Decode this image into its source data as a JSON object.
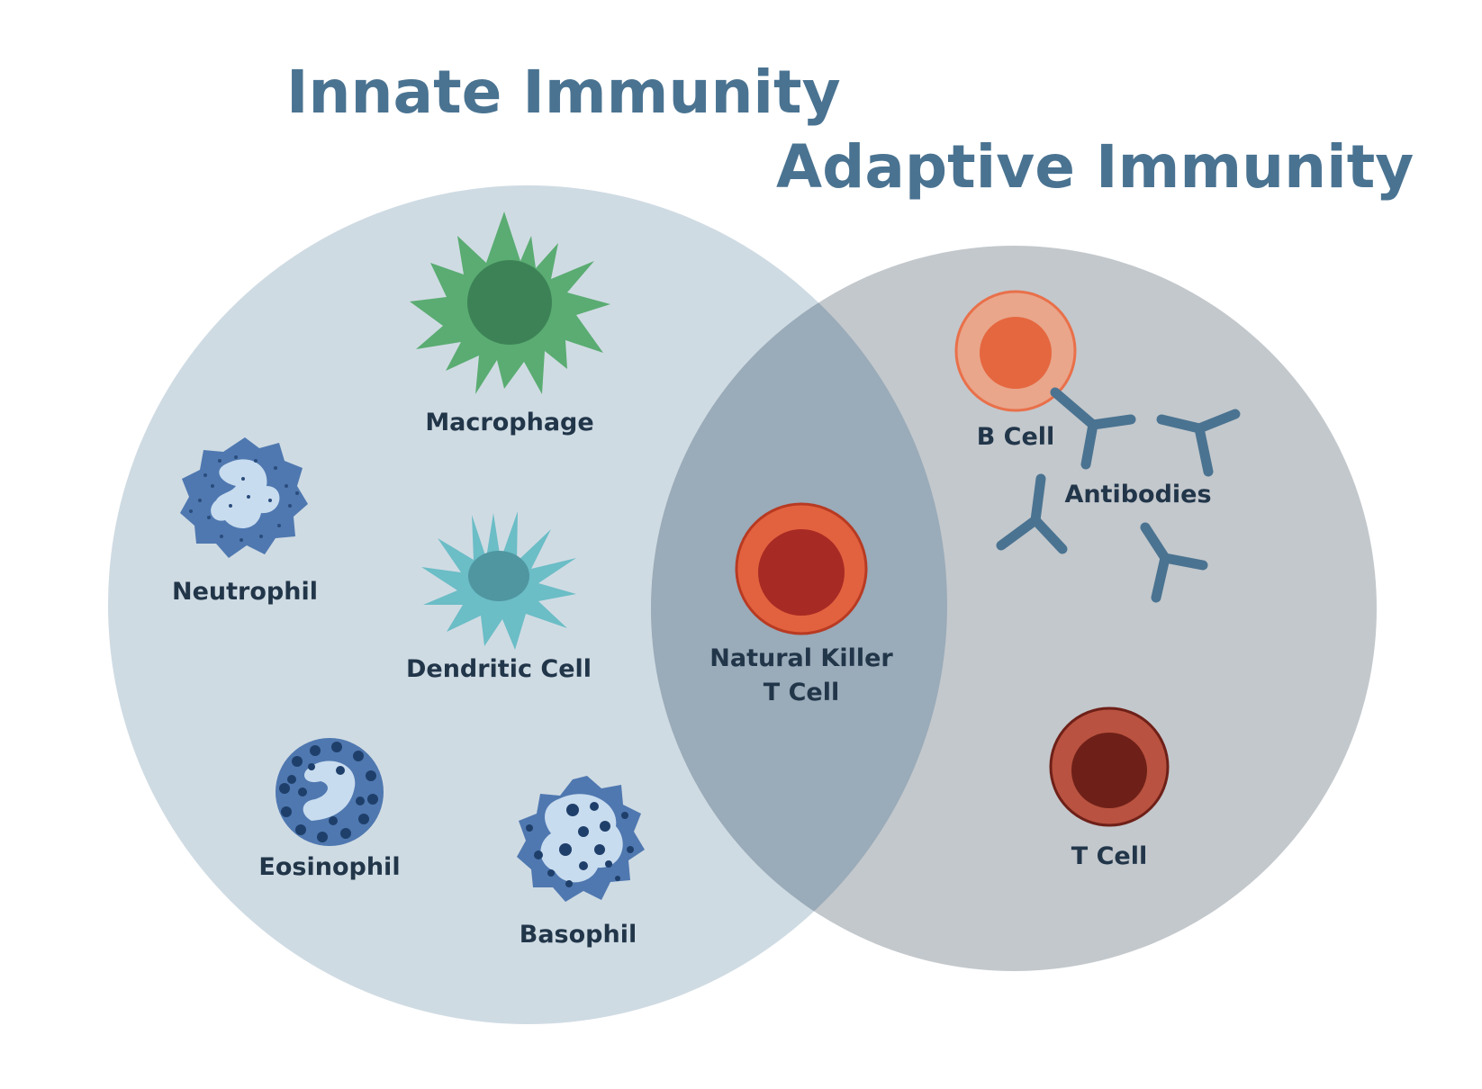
{
  "titles": {
    "innate": "Innate Immunity",
    "adaptive": "Adaptive Immunity"
  },
  "labels": {
    "macrophage": "Macrophage",
    "neutrophil": "Neutrophil",
    "dendritic_cell": "Dendritic Cell",
    "eosinophil": "Eosinophil",
    "basophil": "Basophil",
    "nk_t_cell_line1": "Natural Killer",
    "nk_t_cell_line2": "T Cell",
    "b_cell": "B Cell",
    "antibodies": "Antibodies",
    "t_cell": "T Cell"
  },
  "colors": {
    "innate_circle": "#cfdbe3",
    "adaptive_circle": "#c3c8cc",
    "overlap": "#9aabb9",
    "title": "#4a7391",
    "label": "#22364a",
    "macrophage": "#5aac72",
    "dendritic": "#6bbdc6",
    "granulocyte": "#4f78b0",
    "nk_cell": "#e2623f",
    "b_cell": "#e9704a",
    "t_cell": "#b95240",
    "antibody": "#4a7391"
  }
}
